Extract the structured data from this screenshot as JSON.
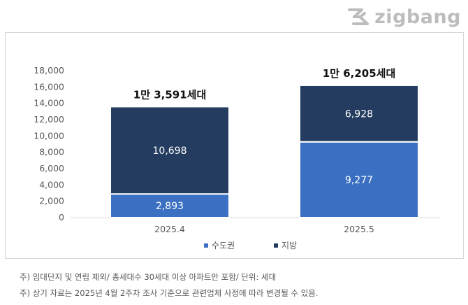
{
  "logo": {
    "text": "zigbang"
  },
  "chart_data": {
    "type": "bar",
    "stacked": true,
    "categories": [
      "2025.4",
      "2025.5"
    ],
    "series": [
      {
        "name": "수도권",
        "values": [
          2893,
          9277
        ],
        "value_labels": [
          "2,893",
          "9,277"
        ],
        "color": "#3a6fc2"
      },
      {
        "name": "지방",
        "values": [
          10698,
          6928
        ],
        "value_labels": [
          "10,698",
          "6,928"
        ],
        "color": "#233c60"
      }
    ],
    "totals": [
      13591,
      16205
    ],
    "total_labels": [
      "1만 3,591세대",
      "1만 6,205세대"
    ],
    "ylim": [
      0,
      18000
    ],
    "yticks": [
      0,
      2000,
      4000,
      6000,
      8000,
      10000,
      12000,
      14000,
      16000,
      18000
    ],
    "ytick_labels": [
      "0",
      "2,000",
      "4,000",
      "6,000",
      "8,000",
      "10,000",
      "12,000",
      "14,000",
      "16,000",
      "18,000"
    ],
    "grid": false,
    "legend_position": "bottom"
  },
  "footnotes": [
    "주) 임대단지 및 연립 제외/ 총세대수 30세대 이상 아파트만 포함/ 단위: 세대",
    "주) 상기 자료는 2025년 4월 2주차 조사 기준으로 관련업체 사정에 따라 변경될 수 있음."
  ]
}
